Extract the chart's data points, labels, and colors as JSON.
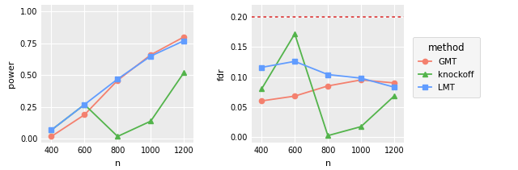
{
  "n": [
    400,
    600,
    800,
    1000,
    1200
  ],
  "power": {
    "GMT": [
      0.02,
      0.19,
      0.46,
      0.66,
      0.8
    ],
    "knockoff": [
      0.07,
      0.27,
      0.02,
      0.14,
      0.52
    ],
    "LMT": [
      0.07,
      0.27,
      0.47,
      0.65,
      0.77
    ]
  },
  "fdr": {
    "GMT": [
      0.06,
      0.068,
      0.085,
      0.095,
      0.09
    ],
    "knockoff": [
      0.08,
      0.172,
      0.002,
      0.017,
      0.068
    ],
    "LMT": [
      0.116,
      0.126,
      0.104,
      0.098,
      0.083
    ]
  },
  "fdr_hline": 0.2,
  "colors": {
    "GMT": "#F4806E",
    "knockoff": "#53B44B",
    "LMT": "#619CFF"
  },
  "markers": {
    "GMT": "o",
    "knockoff": "^",
    "LMT": "s"
  },
  "power_ylim": [
    -0.03,
    1.05
  ],
  "power_yticks": [
    0.0,
    0.25,
    0.5,
    0.75,
    1.0
  ],
  "fdr_ylim": [
    -0.01,
    0.22
  ],
  "fdr_yticks": [
    0.0,
    0.05,
    0.1,
    0.15,
    0.2
  ],
  "xticks": [
    400,
    600,
    800,
    1000,
    1200
  ],
  "xlabel": "n",
  "power_ylabel": "power",
  "fdr_ylabel": "fdr",
  "legend_title": "method",
  "bg_color": "#EBEBEB",
  "grid_color": "#FFFFFF",
  "line_width": 1.3,
  "marker_size": 4.5
}
